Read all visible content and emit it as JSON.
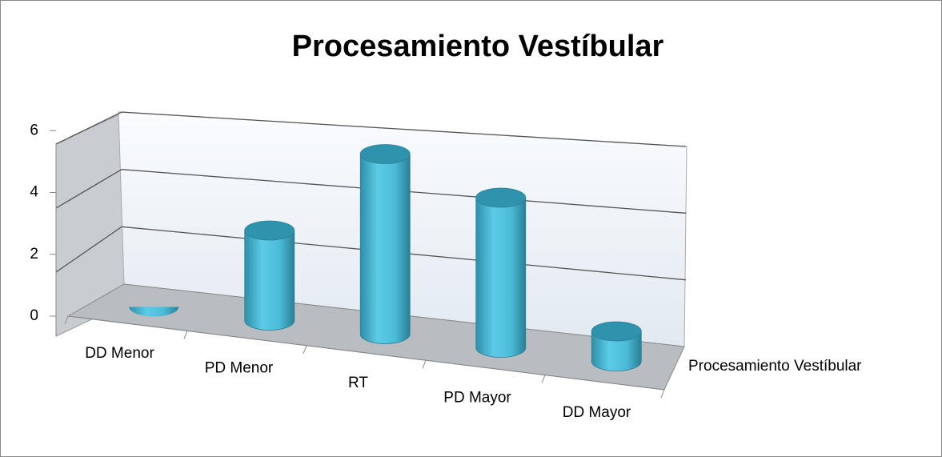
{
  "chart_data": {
    "type": "bar3d",
    "title": "Procesamiento Vestíbular",
    "categories": [
      "DD Menor",
      "PD Menor",
      "RT",
      "PD Mayor",
      "DD Mayor"
    ],
    "series": [
      {
        "name": "Procesamiento Vestíbular",
        "color": "#4bbcd8",
        "values": [
          0,
          3,
          6,
          5,
          1
        ]
      }
    ],
    "ylim": [
      0,
      6
    ],
    "yticks": [
      0,
      2,
      4,
      6
    ],
    "grid": true
  }
}
